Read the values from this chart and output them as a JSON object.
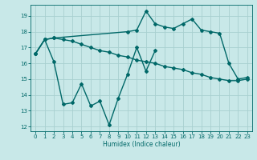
{
  "xlabel": "Humidex (Indice chaleur)",
  "background_color": "#c8e8e8",
  "grid_color": "#a8d0d0",
  "line_color": "#006868",
  "xlim": [
    -0.5,
    23.5
  ],
  "ylim": [
    11.7,
    19.7
  ],
  "yticks": [
    12,
    13,
    14,
    15,
    16,
    17,
    18,
    19
  ],
  "xticks": [
    0,
    1,
    2,
    3,
    4,
    5,
    6,
    7,
    8,
    9,
    10,
    11,
    12,
    13,
    14,
    15,
    16,
    17,
    18,
    19,
    20,
    21,
    22,
    23
  ],
  "line1_x": [
    0,
    1,
    2,
    3,
    4,
    5,
    6,
    7,
    8,
    9,
    10,
    11,
    12,
    13,
    14,
    15,
    16,
    17,
    18,
    19,
    20,
    21,
    22,
    23
  ],
  "line1_y": [
    16.6,
    17.5,
    17.6,
    17.5,
    17.4,
    17.2,
    17.0,
    16.8,
    16.7,
    16.5,
    16.4,
    16.2,
    16.1,
    16.0,
    15.8,
    15.7,
    15.6,
    15.4,
    15.3,
    15.1,
    15.0,
    14.9,
    14.9,
    15.0
  ],
  "line2_x": [
    0,
    1,
    2,
    10,
    11,
    12,
    13,
    14,
    15,
    16,
    17,
    18,
    19,
    20,
    21,
    22,
    23
  ],
  "line2_y": [
    16.6,
    17.5,
    17.6,
    18.0,
    18.1,
    19.3,
    18.5,
    18.3,
    18.2,
    18.5,
    18.8,
    18.1,
    18.0,
    17.9,
    16.0,
    15.0,
    15.1
  ],
  "line3_x": [
    0,
    1,
    2,
    3,
    4,
    5,
    6,
    7,
    8,
    9,
    10,
    11,
    12,
    13
  ],
  "line3_y": [
    16.6,
    17.5,
    16.1,
    13.4,
    13.5,
    14.7,
    13.3,
    13.6,
    12.1,
    13.8,
    15.3,
    17.0,
    15.5,
    16.8
  ]
}
